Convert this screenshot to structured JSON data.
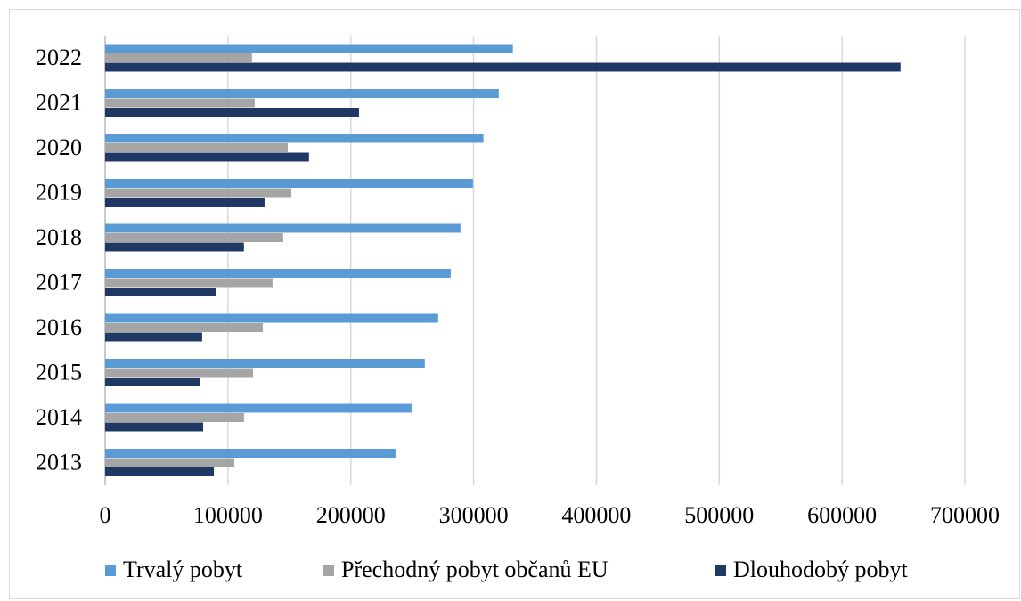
{
  "chart_data": {
    "type": "hbar",
    "categories": [
      "2013",
      "2014",
      "2015",
      "2016",
      "2017",
      "2018",
      "2019",
      "2020",
      "2021",
      "2022"
    ],
    "series": [
      {
        "name": "Trvalý pobyt",
        "color": "#5b9bd5",
        "values": [
          236400,
          249500,
          260300,
          271200,
          281400,
          289300,
          299500,
          308000,
          320500,
          332000
        ]
      },
      {
        "name": "Přechodný pobyt občanů EU",
        "color": "#a5a5a5",
        "values": [
          105200,
          113100,
          120400,
          128400,
          136300,
          145000,
          151600,
          148700,
          121800,
          119600
        ]
      },
      {
        "name": "Dlouhodobý pobyt",
        "color": "#203864",
        "values": [
          88500,
          79800,
          77600,
          79000,
          90000,
          113000,
          129800,
          166000,
          206700,
          647600
        ]
      }
    ],
    "xlim": [
      0,
      700000
    ],
    "xticks": [
      0,
      100000,
      200000,
      300000,
      400000,
      500000,
      600000,
      700000
    ],
    "grid": true,
    "legend": "bottom"
  }
}
